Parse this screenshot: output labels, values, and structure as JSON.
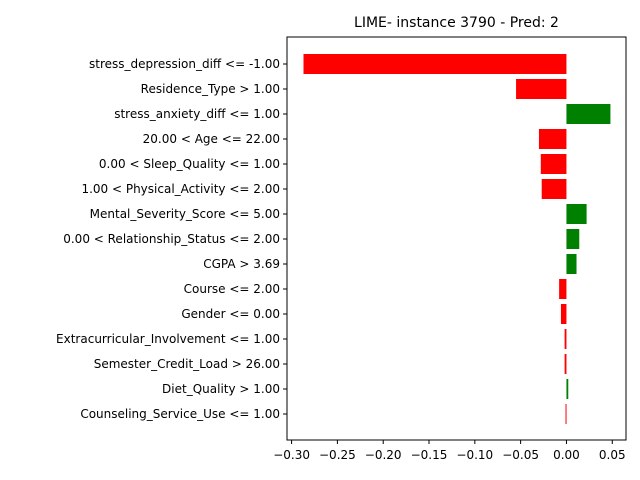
{
  "chart_data": {
    "type": "bar",
    "orientation": "horizontal",
    "title": "LIME- instance 3790 - Pred: 2",
    "xlabel": "",
    "ylabel": "",
    "xlim": [
      -0.305,
      0.065
    ],
    "xticks": [
      -0.3,
      -0.25,
      -0.2,
      -0.15,
      -0.1,
      -0.05,
      0.0,
      0.05
    ],
    "xtick_labels": [
      "−0.30",
      "−0.25",
      "−0.20",
      "−0.15",
      "−0.10",
      "−0.05",
      "0.00",
      "0.05"
    ],
    "grid": false,
    "legend": "none",
    "colors": {
      "positive": "#008000",
      "negative": "#ff0000"
    },
    "categories": [
      "stress_depression_diff <= -1.00",
      "Residence_Type > 1.00",
      "stress_anxiety_diff <= 1.00",
      "20.00 < Age <= 22.00",
      "0.00 < Sleep_Quality <= 1.00",
      "1.00 < Physical_Activity <= 2.00",
      "Mental_Severity_Score <= 5.00",
      "0.00 < Relationship_Status <= 2.00",
      "CGPA > 3.69",
      "Course <= 2.00",
      "Gender <= 0.00",
      "Extracurricular_Involvement <= 1.00",
      "Semester_Credit_Load > 26.00",
      "Diet_Quality > 1.00",
      "Counseling_Service_Use <= 1.00"
    ],
    "values": [
      -0.287,
      -0.055,
      0.048,
      -0.03,
      -0.028,
      -0.027,
      0.022,
      0.014,
      0.011,
      -0.008,
      -0.006,
      -0.002,
      -0.002,
      0.002,
      -0.001
    ]
  }
}
